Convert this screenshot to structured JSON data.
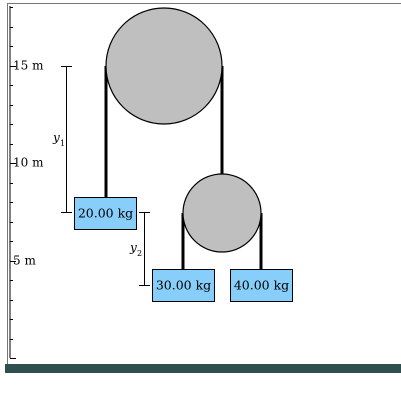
{
  "ruler": {
    "labels": [
      "15 m",
      "10 m",
      "5 m"
    ]
  },
  "masses": [
    "20.00 kg",
    "30.00 kg",
    "40.00 kg"
  ],
  "distances": [
    {
      "symbol": "y",
      "subscript": "1"
    },
    {
      "symbol": "y",
      "subscript": "2"
    }
  ]
}
